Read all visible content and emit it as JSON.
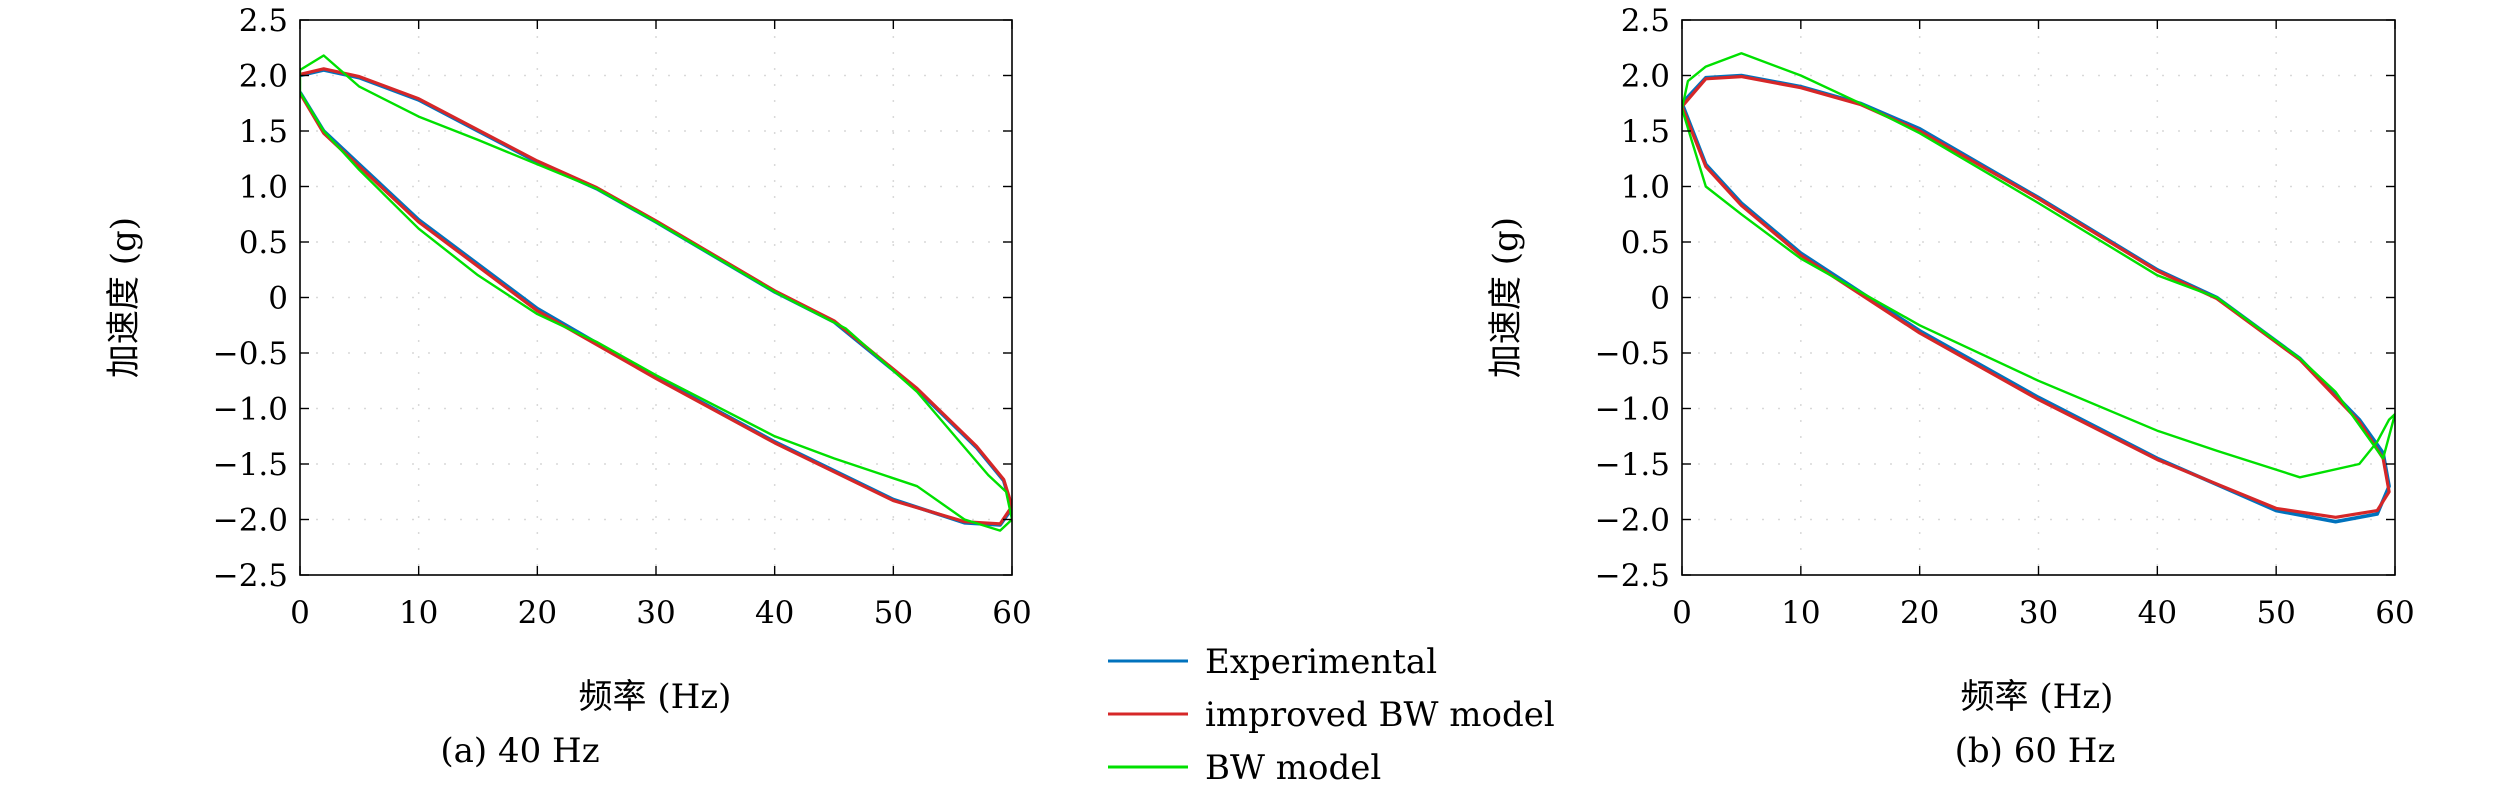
{
  "chart_data": [
    {
      "type": "line",
      "caption": "(a) 40 Hz",
      "xlabel": "频率 (Hz)",
      "ylabel": "加速度 (g)",
      "xlim": [
        0,
        60
      ],
      "ylim": [
        -2.5,
        2.5
      ],
      "xticks": [
        "0",
        "10",
        "20",
        "30",
        "40",
        "50",
        "60"
      ],
      "yticks": [
        "2.5",
        "2.0",
        "1.5",
        "1.0",
        "0.5",
        "0",
        "−0.5",
        "−1.0",
        "−1.5",
        "−2.0",
        "−2.5"
      ],
      "grid": true,
      "series": [
        {
          "name": "Experimental",
          "color": "#0072bd",
          "x": [
            0,
            2,
            5,
            10,
            20,
            30,
            40,
            50,
            56,
            59,
            60,
            59.3,
            57,
            52,
            45,
            40,
            30,
            25,
            20,
            15,
            10,
            5,
            2,
            0
          ],
          "y": [
            1.85,
            1.5,
            1.2,
            0.7,
            -0.1,
            -0.72,
            -1.3,
            -1.82,
            -2.03,
            -2.05,
            -1.9,
            -1.65,
            -1.35,
            -0.83,
            -0.22,
            0.05,
            0.68,
            0.98,
            1.22,
            1.5,
            1.78,
            1.98,
            2.05,
            2.0
          ]
        },
        {
          "name": "improved BW model",
          "color": "#d62728",
          "x": [
            0,
            2,
            5,
            10,
            20,
            30,
            40,
            50,
            56,
            59,
            60,
            59.3,
            57,
            52,
            45,
            40,
            30,
            25,
            20,
            15,
            10,
            5,
            2,
            0
          ],
          "y": [
            1.84,
            1.48,
            1.18,
            0.68,
            -0.12,
            -0.73,
            -1.31,
            -1.83,
            -2.02,
            -2.04,
            -1.88,
            -1.64,
            -1.34,
            -0.82,
            -0.21,
            0.06,
            0.69,
            0.99,
            1.23,
            1.51,
            1.79,
            1.99,
            2.06,
            2.01
          ]
        },
        {
          "name": "BW model",
          "color": "#00e000",
          "x": [
            0,
            2,
            5,
            10,
            15,
            20,
            25,
            30,
            40,
            45,
            52,
            56,
            59,
            60,
            59.5,
            58,
            56,
            52,
            46,
            40,
            30,
            25,
            20,
            15,
            10,
            5,
            2,
            0,
            0
          ],
          "y": [
            1.85,
            1.5,
            1.15,
            0.62,
            0.2,
            -0.15,
            -0.4,
            -0.7,
            -1.25,
            -1.45,
            -1.7,
            -2.0,
            -2.1,
            -2.0,
            -1.75,
            -1.6,
            -1.35,
            -0.85,
            -0.28,
            0.05,
            0.68,
            0.98,
            1.2,
            1.42,
            1.63,
            1.9,
            2.18,
            2.05,
            1.85
          ]
        }
      ]
    },
    {
      "type": "line",
      "caption": "(b) 60 Hz",
      "xlabel": "频率 (Hz)",
      "ylabel": "加速度 (g)",
      "xlim": [
        0,
        60
      ],
      "ylim": [
        -2.5,
        2.5
      ],
      "xticks": [
        "0",
        "10",
        "20",
        "30",
        "40",
        "50",
        "60"
      ],
      "yticks": [
        "2.5",
        "2.0",
        "1.5",
        "1.0",
        "0.5",
        "0",
        "−0.5",
        "−1.0",
        "−1.5",
        "−2.0",
        "−2.5"
      ],
      "grid": true,
      "series": [
        {
          "name": "Experimental",
          "color": "#0072bd",
          "x": [
            0,
            2,
            5,
            10,
            20,
            30,
            40,
            50,
            55,
            58.5,
            59.5,
            59,
            57,
            52,
            45,
            40,
            30,
            20,
            15,
            10,
            5,
            2,
            0
          ],
          "y": [
            1.75,
            1.2,
            0.85,
            0.4,
            -0.3,
            -0.9,
            -1.45,
            -1.92,
            -2.02,
            -1.95,
            -1.7,
            -1.4,
            -1.1,
            -0.55,
            0.0,
            0.25,
            0.9,
            1.52,
            1.75,
            1.9,
            2.0,
            1.98,
            1.75
          ]
        },
        {
          "name": "improved BW model",
          "color": "#d62728",
          "x": [
            0,
            2,
            5,
            10,
            20,
            30,
            40,
            50,
            55,
            58.5,
            59.5,
            59,
            57,
            52,
            45,
            40,
            30,
            20,
            15,
            10,
            5,
            2,
            0
          ],
          "y": [
            1.72,
            1.18,
            0.83,
            0.38,
            -0.32,
            -0.92,
            -1.46,
            -1.9,
            -1.98,
            -1.92,
            -1.75,
            -1.45,
            -1.12,
            -0.56,
            -0.01,
            0.24,
            0.89,
            1.5,
            1.74,
            1.89,
            1.99,
            1.97,
            1.72
          ]
        },
        {
          "name": "BW model",
          "color": "#00e000",
          "x": [
            0,
            2,
            5,
            10,
            20,
            30,
            40,
            45,
            52,
            57,
            58.5,
            59.5,
            60,
            59,
            57,
            55,
            52,
            45,
            40,
            30,
            20,
            15,
            10,
            5,
            2,
            0.5,
            0
          ],
          "y": [
            1.7,
            1.0,
            0.75,
            0.35,
            -0.25,
            -0.75,
            -1.2,
            -1.38,
            -1.62,
            -1.5,
            -1.3,
            -1.1,
            -1.05,
            -1.45,
            -1.15,
            -0.85,
            -0.55,
            0.0,
            0.2,
            0.85,
            1.48,
            1.75,
            2.0,
            2.2,
            2.08,
            1.95,
            1.7
          ]
        }
      ]
    }
  ]
}
